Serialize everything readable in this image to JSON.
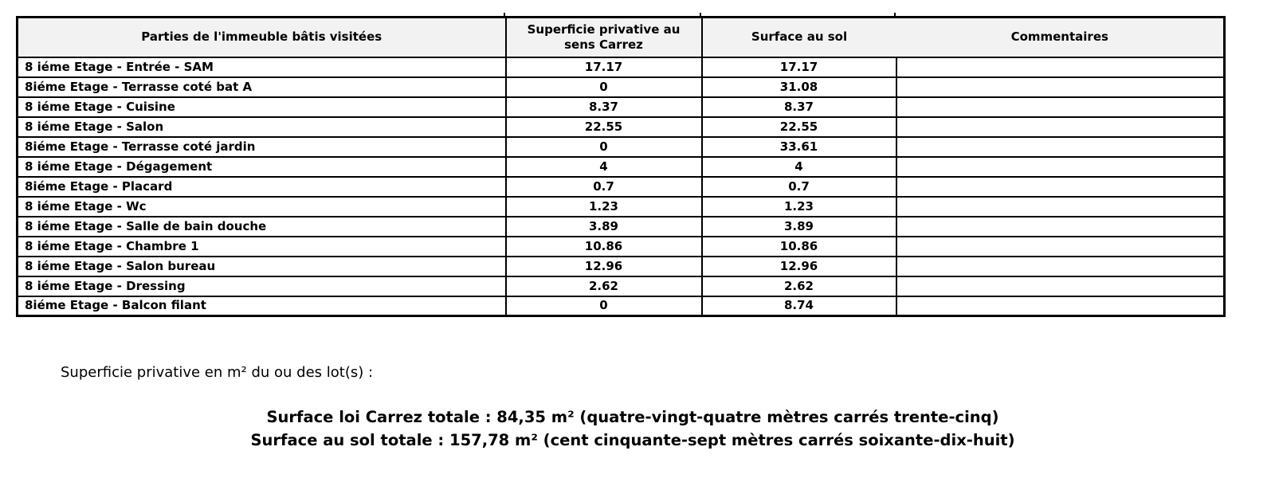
{
  "table": {
    "headers": [
      "Parties de l'immeuble bâtis visitées",
      "Superficie privative au sens Carrez",
      "Surface au sol",
      "Commentaires"
    ],
    "rows": [
      {
        "label": "8 iéme Etage - Entrée - SAM",
        "carrez": "17.17",
        "sol": "17.17",
        "comment": ""
      },
      {
        "label": "8iéme Etage - Terrasse coté bat A",
        "carrez": "0",
        "sol": "31.08",
        "comment": ""
      },
      {
        "label": "8 iéme Etage - Cuisine",
        "carrez": "8.37",
        "sol": "8.37",
        "comment": ""
      },
      {
        "label": "8 iéme Etage - Salon",
        "carrez": "22.55",
        "sol": "22.55",
        "comment": ""
      },
      {
        "label": "8iéme Etage - Terrasse coté jardin",
        "carrez": "0",
        "sol": "33.61",
        "comment": ""
      },
      {
        "label": "8 iéme Etage - Dégagement",
        "carrez": "4",
        "sol": "4",
        "comment": ""
      },
      {
        "label": "8iéme Etage - Placard",
        "carrez": "0.7",
        "sol": "0.7",
        "comment": ""
      },
      {
        "label": "8 iéme Etage - Wc",
        "carrez": "1.23",
        "sol": "1.23",
        "comment": ""
      },
      {
        "label": "8 iéme Etage - Salle de bain douche",
        "carrez": "3.89",
        "sol": "3.89",
        "comment": ""
      },
      {
        "label": "8 iéme Etage - Chambre 1",
        "carrez": "10.86",
        "sol": "10.86",
        "comment": ""
      },
      {
        "label": "8 iéme Etage - Salon bureau",
        "carrez": "12.96",
        "sol": "12.96",
        "comment": ""
      },
      {
        "label": "8 iéme Etage - Dressing",
        "carrez": "2.62",
        "sol": "2.62",
        "comment": ""
      },
      {
        "label": "8iéme Etage - Balcon filant",
        "carrez": "0",
        "sol": "8.74",
        "comment": ""
      }
    ]
  },
  "footer": {
    "intro": "Superficie privative en m² du ou des lot(s) :",
    "total_carrez": "Surface loi Carrez totale : 84,35 m² (quatre-vingt-quatre mètres carrés trente-cinq)",
    "total_sol": "Surface au sol totale : 157,78 m² (cent cinquante-sept mètres carrés soixante-dix-huit)"
  },
  "colors": {
    "header_bg": "#f2f2f2",
    "border": "#000000",
    "text": "#000000"
  }
}
